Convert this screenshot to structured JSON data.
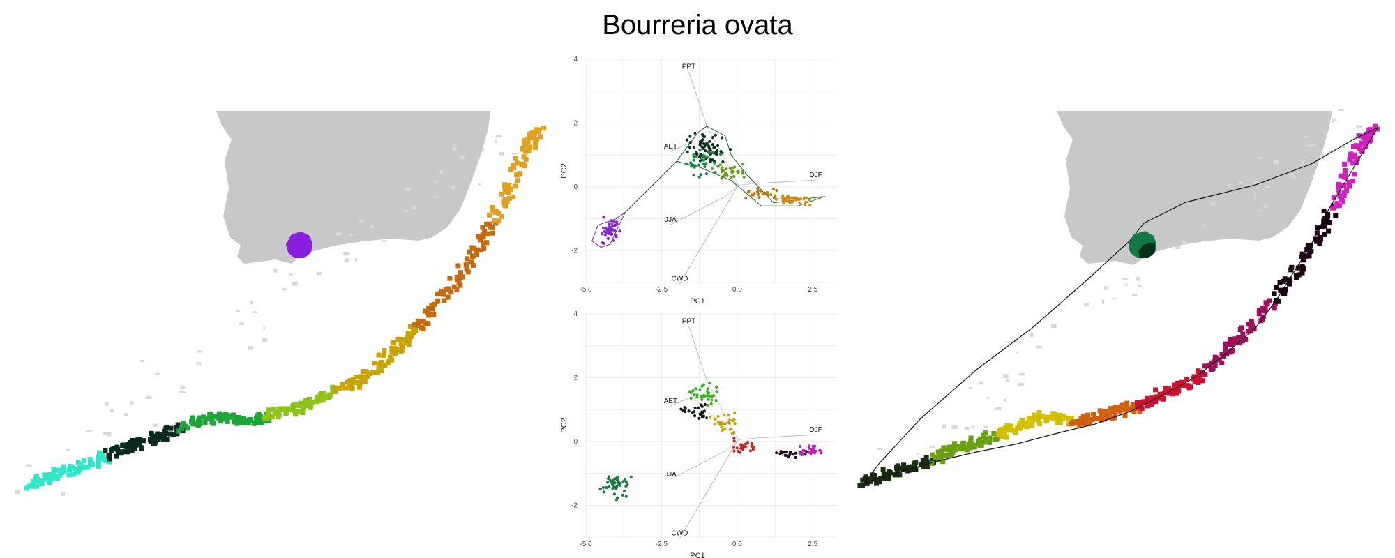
{
  "title": "Bourreria ovata",
  "chart_data": [
    {
      "type": "map",
      "panel": "left-map",
      "color_scheme": [
        "#8a1ee0",
        "#2ee6c8",
        "#0a2a1e",
        "#1fa63a",
        "#8fc21a",
        "#c9a400",
        "#c46a10",
        "#e0a020"
      ]
    },
    {
      "type": "scatter",
      "panel": "pca-top",
      "xlabel": "PC1",
      "ylabel": "PC2",
      "xlim": [
        -5,
        3.3
      ],
      "ylim": [
        -3,
        4
      ],
      "xticks": [
        "-5.0",
        "-2.5",
        "0.0",
        "2.5"
      ],
      "xtick_values": [
        -5,
        -2.5,
        0,
        2.5
      ],
      "yticks": [
        "4",
        "2",
        "0",
        "-2"
      ],
      "ytick_values": [
        4,
        2,
        0,
        -2
      ],
      "grid": true,
      "loadings": [
        {
          "name": "PPT",
          "label_x": -1.6,
          "label_y": 3.7,
          "end_x": -1.0,
          "end_y": 1.9
        },
        {
          "name": "AET",
          "label_x": -2.2,
          "label_y": 1.2,
          "end_x": -1.5,
          "end_y": 1.4
        },
        {
          "name": "DJF",
          "label_x": 2.6,
          "label_y": 0.3,
          "end_x": 0.5,
          "end_y": 0.1
        },
        {
          "name": "JJA",
          "label_x": -2.2,
          "label_y": -1.1,
          "end_x": -0.4,
          "end_y": -0.3
        },
        {
          "name": "CWD",
          "label_x": -1.9,
          "label_y": -2.95,
          "end_x": 0.0,
          "end_y": 0.0
        }
      ],
      "clusters": [
        {
          "cx": -4.2,
          "cy": -1.4,
          "sx": 0.4,
          "sy": 0.35,
          "n": 40,
          "color": "#8a20d0"
        },
        {
          "cx": -1.0,
          "cy": 1.2,
          "sx": 0.5,
          "sy": 0.35,
          "n": 60,
          "color": "#0a3020"
        },
        {
          "cx": -1.2,
          "cy": 0.8,
          "sx": 0.5,
          "sy": 0.3,
          "n": 35,
          "color": "#1a8a40"
        },
        {
          "cx": -0.3,
          "cy": 0.5,
          "sx": 0.4,
          "sy": 0.2,
          "n": 30,
          "color": "#6a9a20"
        },
        {
          "cx": 0.8,
          "cy": -0.2,
          "sx": 0.5,
          "sy": 0.15,
          "n": 25,
          "color": "#b07a10"
        },
        {
          "cx": 1.9,
          "cy": -0.4,
          "sx": 0.6,
          "sy": 0.12,
          "n": 40,
          "color": "#d08a10"
        }
      ]
    },
    {
      "type": "scatter",
      "panel": "pca-bottom",
      "xlabel": "PC1",
      "ylabel": "PC2",
      "xlim": [
        -5,
        3.3
      ],
      "ylim": [
        -3,
        4
      ],
      "xticks": [
        "-5.0",
        "-2.5",
        "0.0",
        "2.5"
      ],
      "xtick_values": [
        -5,
        -2.5,
        0,
        2.5
      ],
      "yticks": [
        "4",
        "2",
        "0",
        "-2"
      ],
      "ytick_values": [
        4,
        2,
        0,
        -2
      ],
      "grid": true,
      "loadings": [
        {
          "name": "PPT",
          "label_x": -1.6,
          "label_y": 3.7,
          "end_x": -1.0,
          "end_y": 1.9
        },
        {
          "name": "AET",
          "label_x": -2.2,
          "label_y": 1.2,
          "end_x": -1.5,
          "end_y": 1.4
        },
        {
          "name": "DJF",
          "label_x": 2.6,
          "label_y": 0.3,
          "end_x": 0.5,
          "end_y": 0.1
        },
        {
          "name": "JJA",
          "label_x": -2.2,
          "label_y": -1.1,
          "end_x": -0.4,
          "end_y": -0.3
        },
        {
          "name": "CWD",
          "label_x": -1.9,
          "label_y": -2.95,
          "end_x": 0.0,
          "end_y": 0.0
        }
      ],
      "clusters": [
        {
          "cx": -4.0,
          "cy": -1.4,
          "sx": 0.35,
          "sy": 0.35,
          "n": 40,
          "color": "#1a7a3a"
        },
        {
          "cx": -1.1,
          "cy": 1.5,
          "sx": 0.4,
          "sy": 0.3,
          "n": 35,
          "color": "#3ab020"
        },
        {
          "cx": -1.3,
          "cy": 0.9,
          "sx": 0.4,
          "sy": 0.2,
          "n": 25,
          "color": "#101a10"
        },
        {
          "cx": -0.4,
          "cy": 0.6,
          "sx": 0.35,
          "sy": 0.25,
          "n": 30,
          "color": "#c8a000"
        },
        {
          "cx": 0.2,
          "cy": -0.2,
          "sx": 0.35,
          "sy": 0.2,
          "n": 25,
          "color": "#d02020"
        },
        {
          "cx": 1.7,
          "cy": -0.4,
          "sx": 0.5,
          "sy": 0.1,
          "n": 25,
          "color": "#200a18"
        },
        {
          "cx": 2.4,
          "cy": -0.3,
          "sx": 0.4,
          "sy": 0.12,
          "n": 25,
          "color": "#c020c0"
        }
      ]
    },
    {
      "type": "map",
      "panel": "right-map",
      "color_scheme": [
        "#0a8a4a",
        "#1a2a10",
        "#6aa010",
        "#d0c000",
        "#d06010",
        "#d01030",
        "#a0105a",
        "#1a0010",
        "#d020c0"
      ]
    }
  ]
}
